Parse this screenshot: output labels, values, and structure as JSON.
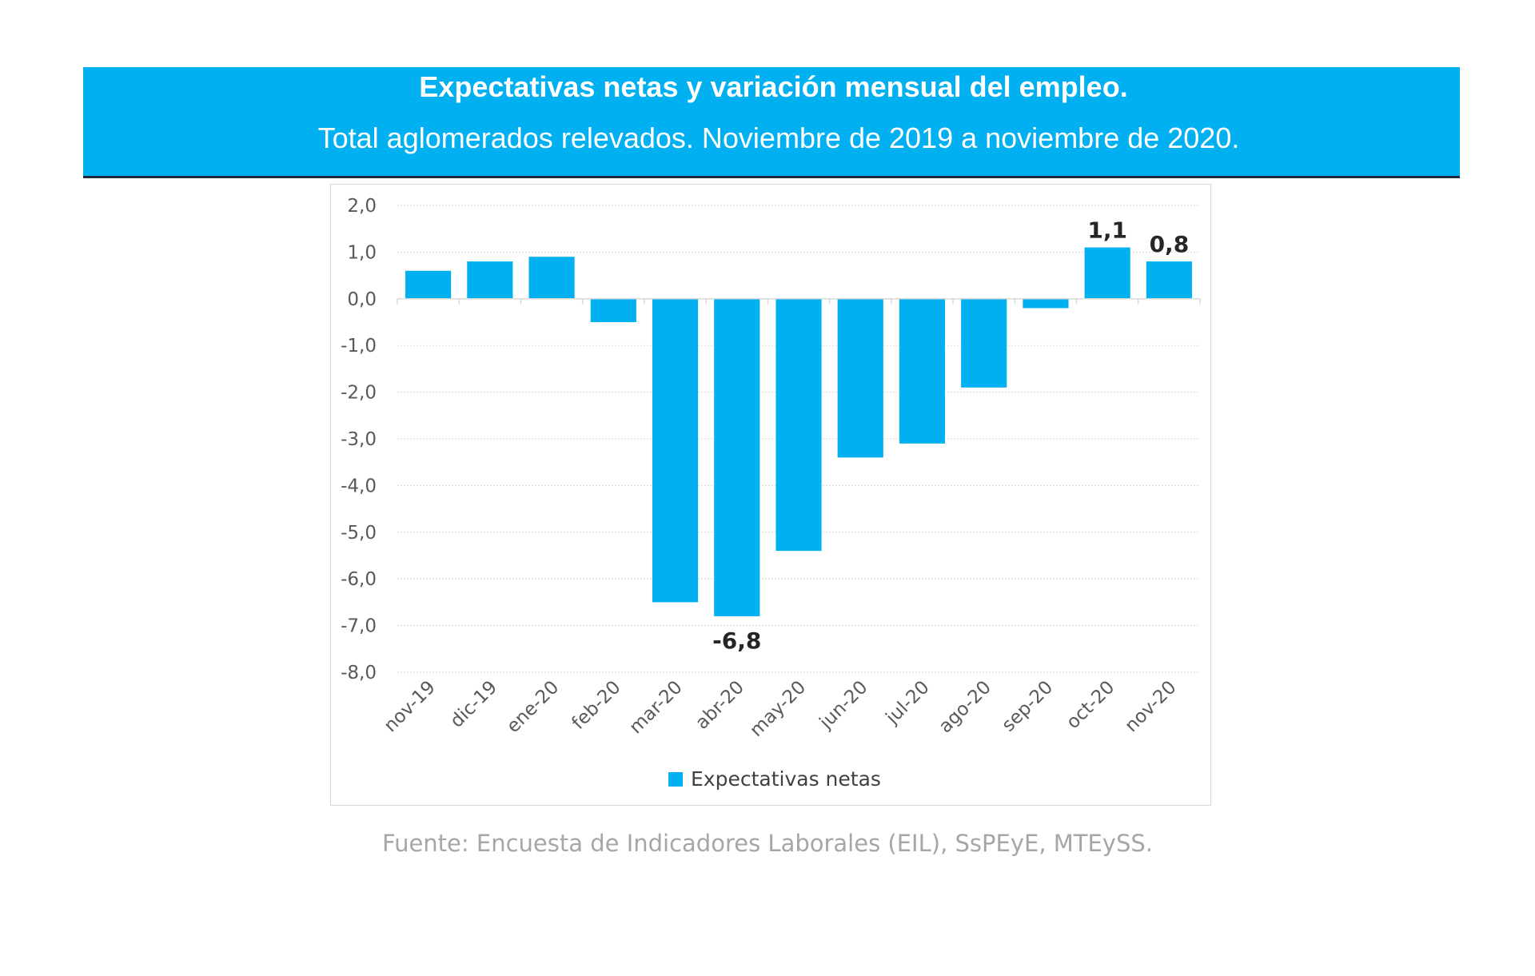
{
  "header": {
    "title": "Expectativas netas y variación mensual del empleo.",
    "subtitle": "Total aglomerados relevados. Noviembre de 2019 a noviembre de 2020."
  },
  "footer": {
    "source": "Fuente: Encuesta de Indicadores Laborales (EIL), SsPEyE, MTEySS."
  },
  "chart_data": {
    "type": "bar",
    "categories": [
      "nov-19",
      "dic-19",
      "ene-20",
      "feb-20",
      "mar-20",
      "abr-20",
      "may-20",
      "jun-20",
      "jul-20",
      "ago-20",
      "sep-20",
      "oct-20",
      "nov-20"
    ],
    "series": [
      {
        "name": "Expectativas netas",
        "values": [
          0.6,
          0.8,
          0.9,
          -0.5,
          -6.5,
          -6.8,
          -5.4,
          -3.4,
          -3.1,
          -1.9,
          -0.2,
          1.1,
          0.8
        ]
      }
    ],
    "data_labels": [
      {
        "category": "abr-20",
        "text": "-6,8"
      },
      {
        "category": "oct-20",
        "text": "1,1"
      },
      {
        "category": "nov-20",
        "text": "0,8"
      }
    ],
    "y_ticks": [
      "2,0",
      "1,0",
      "0,0",
      "-1,0",
      "-2,0",
      "-3,0",
      "-4,0",
      "-5,0",
      "-6,0",
      "-7,0",
      "-8,0"
    ],
    "ylim": [
      -8,
      2
    ],
    "grid": true,
    "legend_position": "bottom",
    "color": "#00b0f0"
  }
}
